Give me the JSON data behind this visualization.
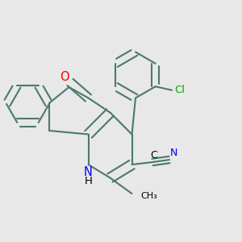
{
  "bg_color": "#e8e8e8",
  "bond_color": "#4a7a6a",
  "bond_width": 1.5,
  "atom_colors": {
    "N": "#0000ee",
    "O": "#ff0000",
    "Cl": "#00aa00",
    "C": "#000000"
  },
  "font_size": 9.5
}
